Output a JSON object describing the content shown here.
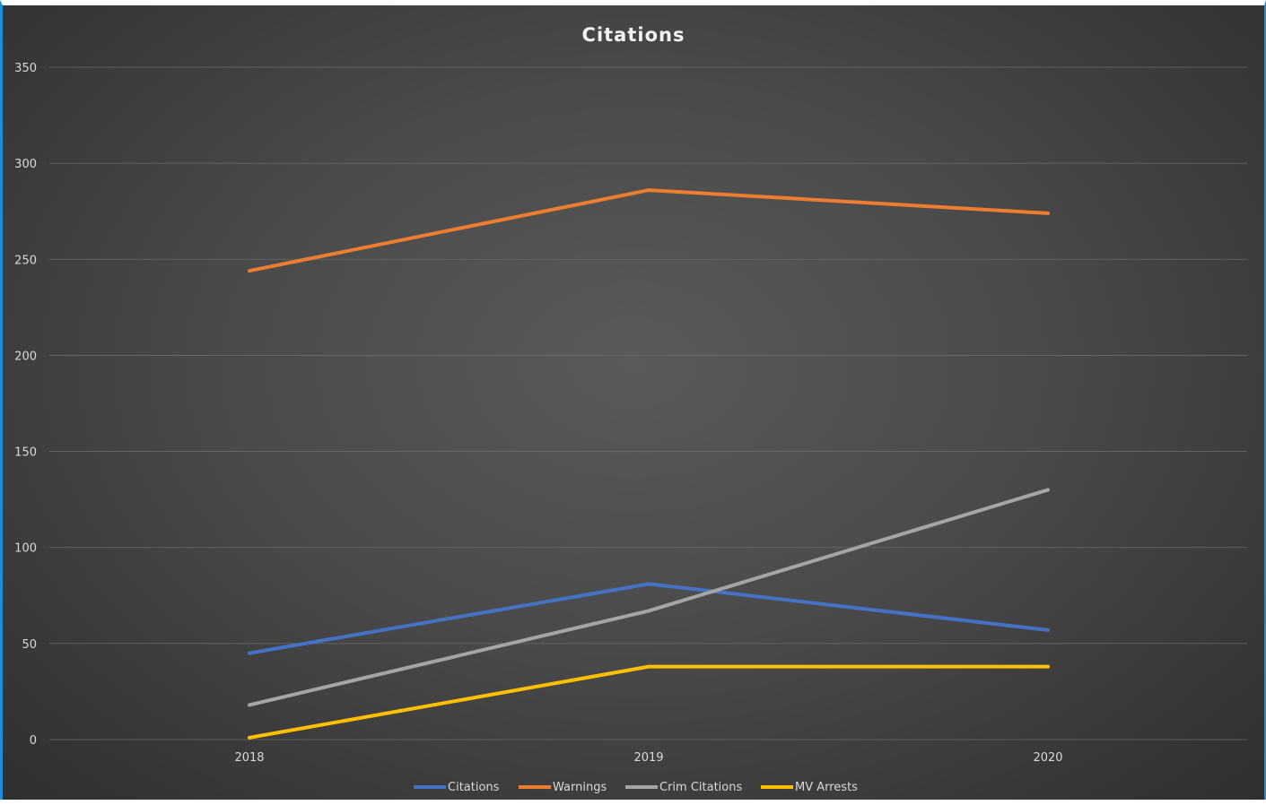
{
  "chart_data": {
    "type": "line",
    "title": "Citations",
    "categories": [
      "2018",
      "2019",
      "2020"
    ],
    "ylim": [
      0,
      350
    ],
    "yticks": [
      0,
      50,
      100,
      150,
      200,
      250,
      300,
      350
    ],
    "grid": true,
    "legend_position": "bottom",
    "series": [
      {
        "name": "Citations",
        "color": "#4472c4",
        "values": [
          45,
          81,
          57
        ]
      },
      {
        "name": "Warnings",
        "color": "#ed7d31",
        "values": [
          244,
          286,
          274
        ]
      },
      {
        "name": "Crim Citations",
        "color": "#a5a5a5",
        "values": [
          18,
          67,
          130
        ]
      },
      {
        "name": "MV Arrests",
        "color": "#ffc000",
        "values": [
          1,
          38,
          38
        ]
      }
    ]
  }
}
